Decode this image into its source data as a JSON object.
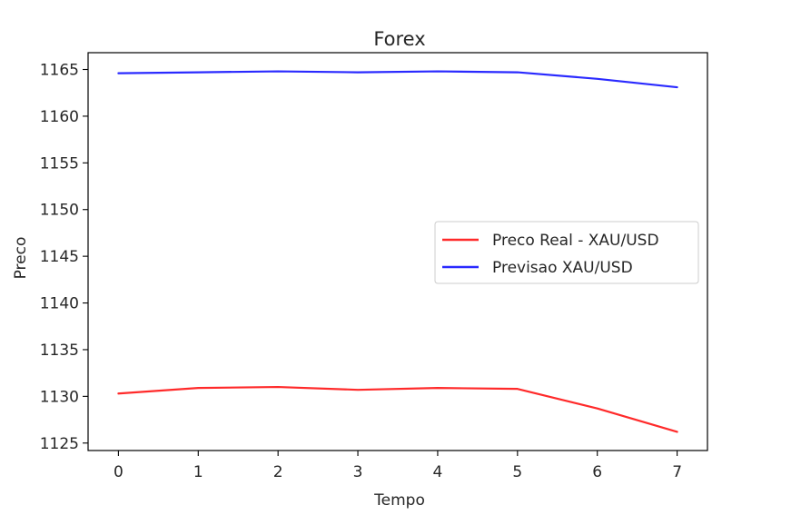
{
  "chart_data": {
    "type": "line",
    "title": "Forex",
    "xlabel": "Tempo",
    "ylabel": "Preco",
    "x": [
      0,
      1,
      2,
      3,
      4,
      5,
      6,
      7
    ],
    "xlim": [
      -0.38,
      7.38
    ],
    "ylim": [
      1124.2,
      1166.8
    ],
    "xticks": [
      0,
      1,
      2,
      3,
      4,
      5,
      6,
      7
    ],
    "yticks": [
      1125,
      1130,
      1135,
      1140,
      1145,
      1150,
      1155,
      1160,
      1165
    ],
    "grid": false,
    "legend_position": "center-right",
    "series": [
      {
        "name": "Preco Real - XAU/USD",
        "color": "#ff2a2a",
        "values": [
          1130.3,
          1130.9,
          1131.0,
          1130.7,
          1130.9,
          1130.8,
          1128.7,
          1126.2
        ]
      },
      {
        "name": "Previsao XAU/USD",
        "color": "#2a2aff",
        "values": [
          1164.6,
          1164.7,
          1164.8,
          1164.7,
          1164.8,
          1164.7,
          1164.0,
          1163.1
        ]
      }
    ]
  }
}
